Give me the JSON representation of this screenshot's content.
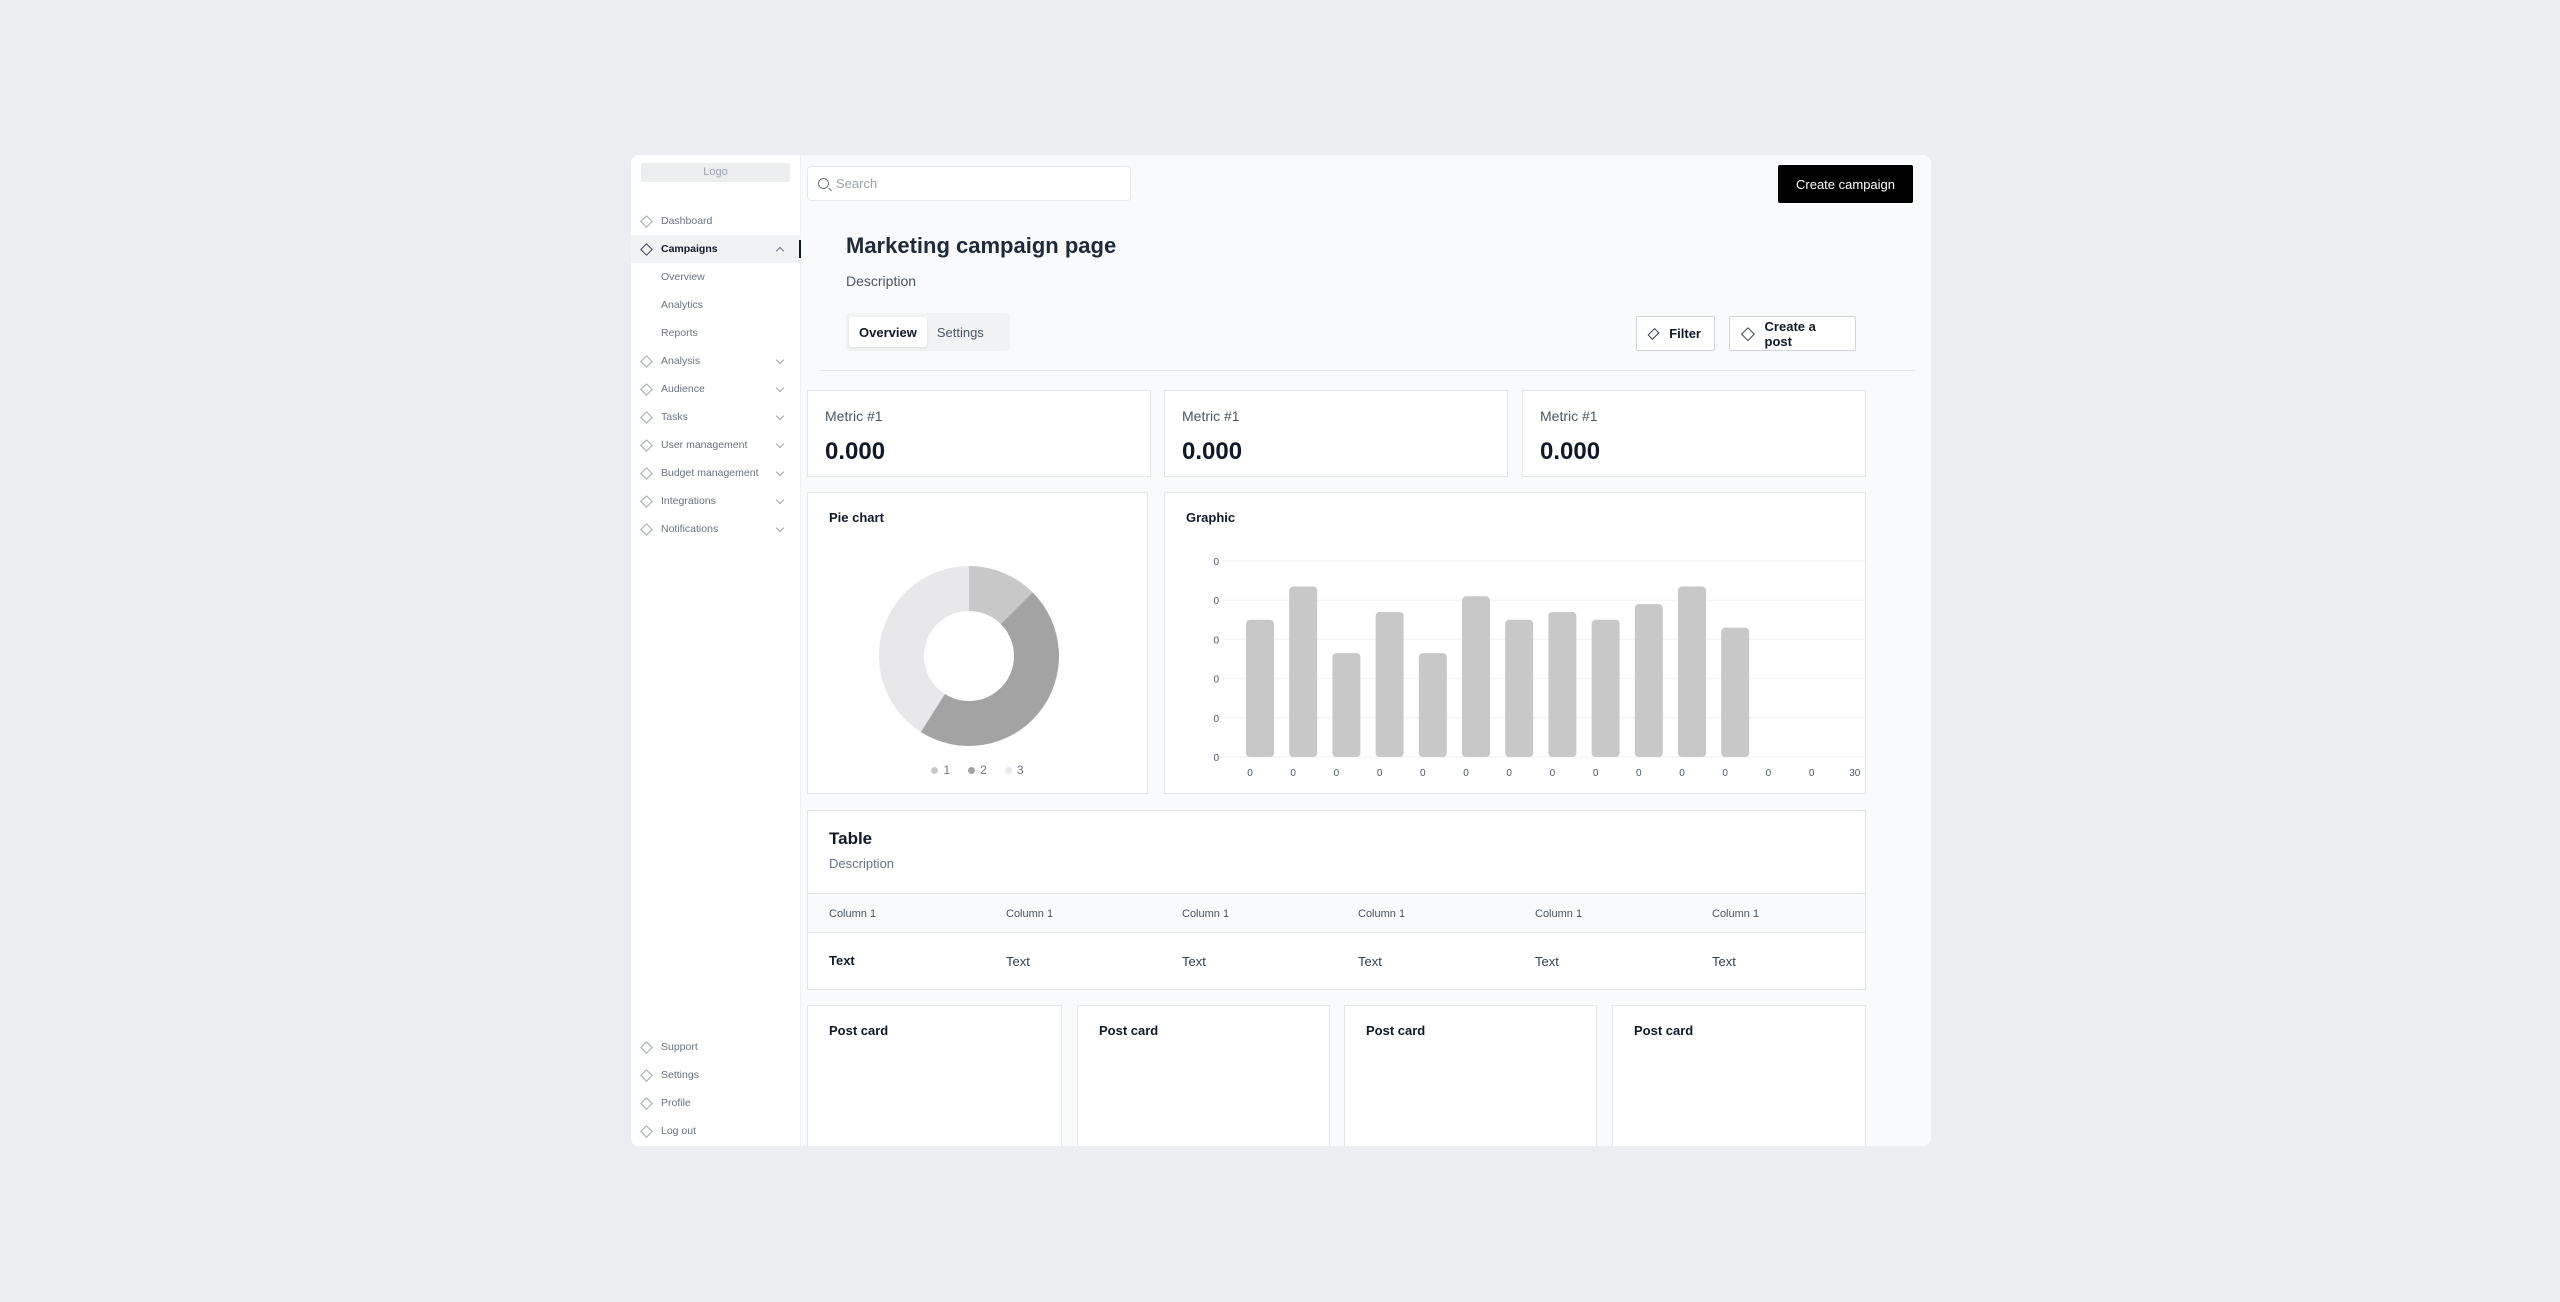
{
  "sidebar": {
    "logo": "Logo",
    "items": [
      {
        "label": "Dashboard"
      },
      {
        "label": "Campaigns"
      },
      {
        "label": "Analysis"
      },
      {
        "label": "Audience"
      },
      {
        "label": "Tasks"
      },
      {
        "label": "User management"
      },
      {
        "label": "Budget management"
      },
      {
        "label": "Integrations"
      },
      {
        "label": "Notifications"
      }
    ],
    "active_item": "Campaigns",
    "sub_items": [
      {
        "label": "Overview"
      },
      {
        "label": "Analytics"
      },
      {
        "label": "Reports"
      }
    ],
    "bottom_items": [
      {
        "label": "Support"
      },
      {
        "label": "Settings"
      },
      {
        "label": "Profile"
      },
      {
        "label": "Log out"
      }
    ]
  },
  "search": {
    "placeholder": "Search",
    "value": ""
  },
  "header": {
    "create_campaign_label": "Create campaign"
  },
  "page": {
    "title": "Marketing campaign page",
    "description": "Description",
    "tabs": [
      {
        "label": "Overview"
      },
      {
        "label": "Settings"
      }
    ],
    "active_tab": "Overview",
    "filter_label": "Filter",
    "create_post_label": "Create a post"
  },
  "metrics": [
    {
      "label": "Metric #1",
      "value": "0.000"
    },
    {
      "label": "Metric #1",
      "value": "0.000"
    },
    {
      "label": "Metric #1",
      "value": "0.000"
    }
  ],
  "pie_card": {
    "title": "Pie chart"
  },
  "bar_card": {
    "title": "Graphic"
  },
  "chart_data": [
    {
      "type": "pie",
      "title": "Pie chart",
      "categories": [
        "1",
        "2",
        "3"
      ],
      "values": [
        12.5,
        46.5,
        41
      ],
      "colors": [
        "#C8C8C8",
        "#A3A3A3",
        "#E8E8EA"
      ]
    },
    {
      "type": "bar",
      "title": "Graphic",
      "y_tick_labels": [
        "0",
        "0",
        "0",
        "0",
        "0",
        "0"
      ],
      "x_tick_labels": [
        "0",
        "0",
        "0",
        "0",
        "0",
        "0",
        "0",
        "0",
        "0",
        "0",
        "0",
        "0",
        "0",
        "0",
        "30"
      ],
      "values": [
        70,
        87,
        53,
        74,
        53,
        82,
        70,
        74,
        70,
        78,
        87,
        66
      ],
      "ylim": [
        0,
        100
      ],
      "grid": true,
      "bar_color": "#C8C8C8"
    }
  ],
  "table": {
    "title": "Table",
    "description": "Description",
    "columns": [
      "Column 1",
      "Column 1",
      "Column 1",
      "Column 1",
      "Column 1",
      "Column 1"
    ],
    "rows": [
      [
        "Text",
        "Text",
        "Text",
        "Text",
        "Text",
        "Text"
      ]
    ]
  },
  "post_cards": [
    {
      "title": "Post card"
    },
    {
      "title": "Post card"
    },
    {
      "title": "Post card"
    },
    {
      "title": "Post card"
    }
  ]
}
